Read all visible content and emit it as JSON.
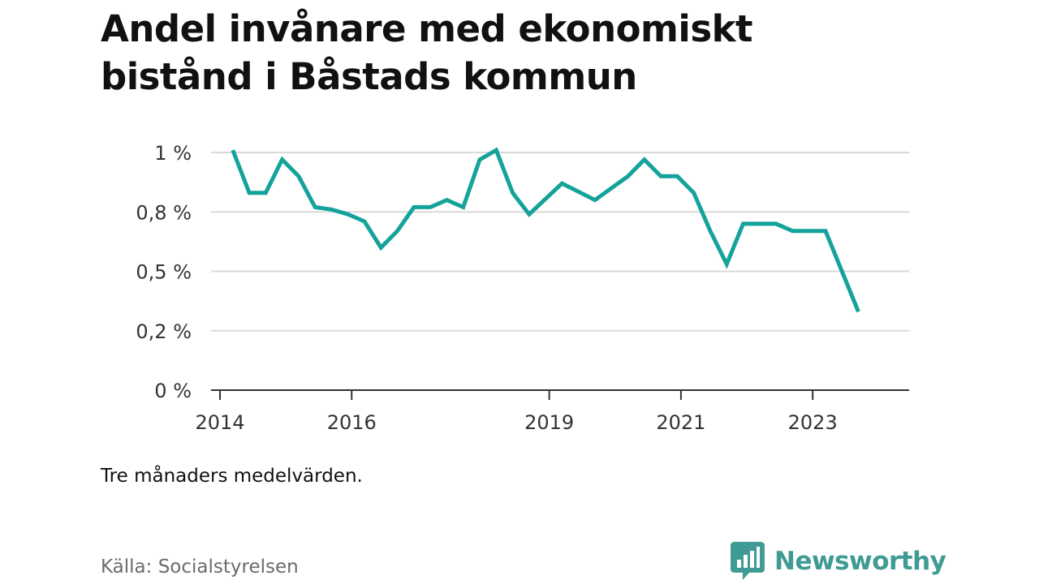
{
  "title": "Andel invånare med ekonomiskt bistånd i Båstads kommun",
  "note": "Tre månaders medelvärden.",
  "source": "Källa: Socialstyrelsen",
  "brand": {
    "name": "Newsworthy",
    "color": "#3f9b93",
    "icon": "bar-chart-speech-bubble-icon"
  },
  "chart_data": {
    "type": "line",
    "title": "Andel invånare med ekonomiskt bistånd i Båstads kommun",
    "xlabel": "",
    "ylabel": "",
    "line_color": "#14a39a",
    "grid": true,
    "xlim": [
      2014.0,
      2024.6
    ],
    "ylim": [
      0,
      1.0
    ],
    "y_ticks": [
      {
        "value": 0,
        "label": "0 %"
      },
      {
        "value": 0.25,
        "label": "0,2 %"
      },
      {
        "value": 0.5,
        "label": "0,5 %"
      },
      {
        "value": 0.75,
        "label": "0,8 %"
      },
      {
        "value": 1.0,
        "label": "1 %"
      }
    ],
    "x_ticks": [
      {
        "value": 2014.0,
        "label": "2014"
      },
      {
        "value": 2016.0,
        "label": "2016"
      },
      {
        "value": 2019.0,
        "label": "2019"
      },
      {
        "value": 2021.0,
        "label": "2021"
      },
      {
        "value": 2023.0,
        "label": "2023"
      }
    ],
    "series": [
      {
        "values": [
          {
            "x": 2014.33,
            "y": 1.01
          },
          {
            "x": 2014.58,
            "y": 0.83
          },
          {
            "x": 2014.83,
            "y": 0.83
          },
          {
            "x": 2015.08,
            "y": 0.97
          },
          {
            "x": 2015.33,
            "y": 0.9
          },
          {
            "x": 2015.58,
            "y": 0.77
          },
          {
            "x": 2015.83,
            "y": 0.76
          },
          {
            "x": 2016.08,
            "y": 0.74
          },
          {
            "x": 2016.33,
            "y": 0.71
          },
          {
            "x": 2016.58,
            "y": 0.6
          },
          {
            "x": 2016.83,
            "y": 0.67
          },
          {
            "x": 2017.08,
            "y": 0.77
          },
          {
            "x": 2017.33,
            "y": 0.77
          },
          {
            "x": 2017.58,
            "y": 0.8
          },
          {
            "x": 2017.83,
            "y": 0.77
          },
          {
            "x": 2018.08,
            "y": 0.97
          },
          {
            "x": 2018.33,
            "y": 1.01
          },
          {
            "x": 2018.58,
            "y": 0.83
          },
          {
            "x": 2018.83,
            "y": 0.74
          },
          {
            "x": 2019.33,
            "y": 0.87
          },
          {
            "x": 2019.83,
            "y": 0.8
          },
          {
            "x": 2020.33,
            "y": 0.9
          },
          {
            "x": 2020.58,
            "y": 0.97
          },
          {
            "x": 2020.83,
            "y": 0.9
          },
          {
            "x": 2021.08,
            "y": 0.9
          },
          {
            "x": 2021.33,
            "y": 0.83
          },
          {
            "x": 2021.58,
            "y": 0.67
          },
          {
            "x": 2021.83,
            "y": 0.53
          },
          {
            "x": 2022.08,
            "y": 0.7
          },
          {
            "x": 2022.33,
            "y": 0.7
          },
          {
            "x": 2022.58,
            "y": 0.7
          },
          {
            "x": 2022.83,
            "y": 0.67
          },
          {
            "x": 2023.08,
            "y": 0.67
          },
          {
            "x": 2023.33,
            "y": 0.67
          },
          {
            "x": 2023.83,
            "y": 0.33
          }
        ]
      }
    ]
  }
}
